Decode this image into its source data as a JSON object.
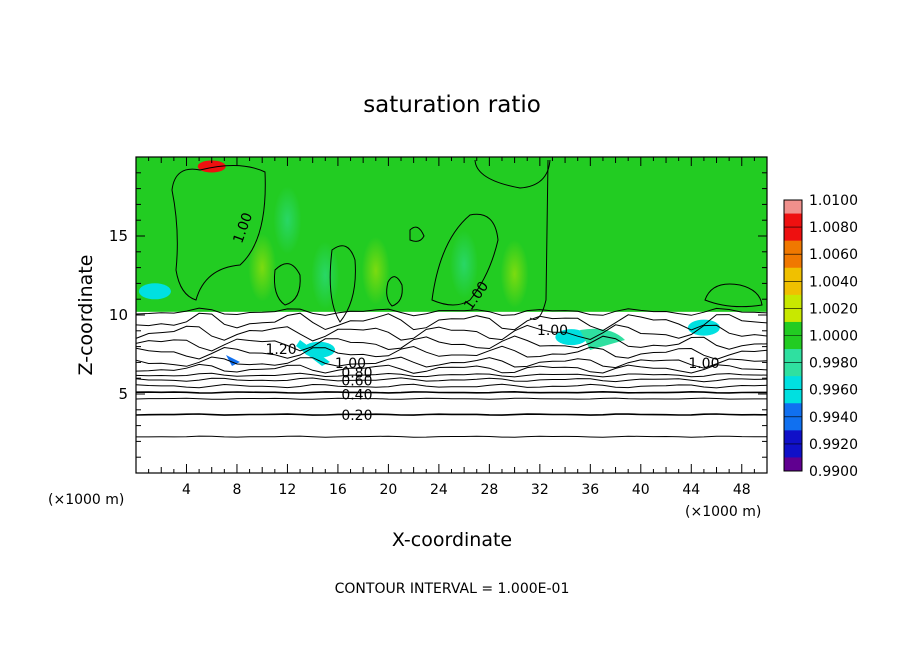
{
  "chart_data": {
    "type": "heatmap",
    "title": "saturation ratio",
    "xlabel": "X-coordinate",
    "ylabel": "Z-coordinate",
    "x_unit_left": "(×1000 m)",
    "x_unit_right": "(×1000 m)",
    "xlim": [
      0,
      50
    ],
    "ylim": [
      0,
      20
    ],
    "x_ticks": [
      4,
      8,
      12,
      16,
      20,
      24,
      28,
      32,
      36,
      40,
      44,
      48
    ],
    "y_ticks": [
      5,
      10,
      15
    ],
    "colorbar": {
      "min": 0.99,
      "max": 1.01,
      "labels": [
        "1.0100",
        "1.0080",
        "1.0060",
        "1.0040",
        "1.0020",
        "1.0000",
        "0.9980",
        "0.9960",
        "0.9940",
        "0.9920",
        "0.9900"
      ],
      "colors": [
        "#f0908c",
        "#ee1010",
        "#f07800",
        "#f0c000",
        "#c8e800",
        "#22cc22",
        "#2fe0a0",
        "#00e0e0",
        "#1070f0",
        "#1010c8",
        "#600090"
      ]
    },
    "field_regions": {
      "saturated_layer_z": [
        10.2,
        20
      ],
      "dominant_value": 1.0,
      "anomalies": [
        {
          "x": 6,
          "z": 19.4,
          "value": 1.008
        },
        {
          "x": 1.5,
          "z": 11.5,
          "value": 0.997
        },
        {
          "x": 14.5,
          "z": 7.8,
          "value": 0.997
        },
        {
          "x": 34.5,
          "z": 8.6,
          "value": 0.997
        },
        {
          "x": 45,
          "z": 9.2,
          "value": 0.997
        }
      ]
    },
    "contour_labels": [
      {
        "text": "1.00",
        "x": 8.5,
        "z": 15.5,
        "angle": -70
      },
      {
        "text": "1.00",
        "x": 27,
        "z": 11.2,
        "angle": -55
      },
      {
        "text": "1.00",
        "x": 33,
        "z": 9.0,
        "angle": 0
      },
      {
        "text": "1.00",
        "x": 45,
        "z": 6.9,
        "angle": 0
      },
      {
        "text": "1.20",
        "x": 11.5,
        "z": 7.8,
        "angle": 0
      },
      {
        "text": "1.00",
        "x": 17,
        "z": 6.9,
        "angle": 0
      },
      {
        "text": "0.80",
        "x": 17.5,
        "z": 6.3,
        "angle": 0
      },
      {
        "text": "0.60",
        "x": 17.5,
        "z": 5.8,
        "angle": 0
      },
      {
        "text": "0.40",
        "x": 17.5,
        "z": 4.9,
        "angle": 0
      },
      {
        "text": "0.20",
        "x": 17.5,
        "z": 3.6,
        "angle": 0
      }
    ],
    "horizontal_contours_z": [
      2.3,
      3.7,
      4.7,
      5.1,
      5.5,
      5.9,
      6.2
    ],
    "footer": "CONTOUR INTERVAL = 1.000E-01"
  }
}
